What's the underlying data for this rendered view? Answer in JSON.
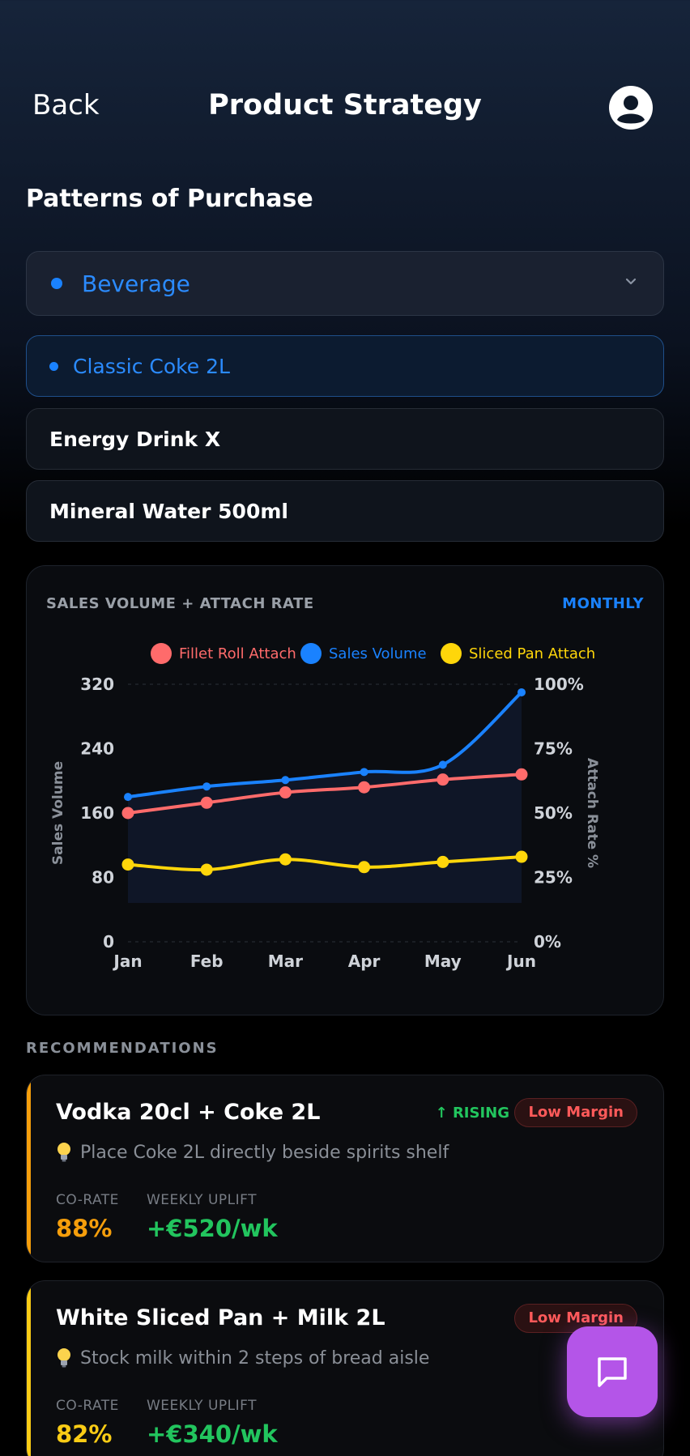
{
  "header": {
    "back_label": "Back",
    "title": "Product Strategy"
  },
  "section_title": "Patterns of Purchase",
  "category_dropdown": {
    "selected": "Beverage"
  },
  "products": [
    {
      "label": "Classic Coke 2L",
      "selected": true
    },
    {
      "label": "Energy Drink X",
      "selected": false
    },
    {
      "label": "Mineral Water 500ml",
      "selected": false
    }
  ],
  "chart": {
    "title": "SALES VOLUME + ATTACH RATE",
    "period": "MONTHLY"
  },
  "chart_data": {
    "type": "line",
    "categories": [
      "Jan",
      "Feb",
      "Mar",
      "Apr",
      "May",
      "Jun"
    ],
    "series": [
      {
        "name": "Fillet Roll Attach",
        "axis": "right",
        "color": "#ff6b6b",
        "values": [
          50,
          54,
          58,
          60,
          63,
          65
        ]
      },
      {
        "name": "Sales Volume",
        "axis": "left",
        "color": "#1a82ff",
        "values": [
          180,
          193,
          201,
          211,
          220,
          310
        ]
      },
      {
        "name": "Sliced Pan Attach",
        "axis": "right",
        "color": "#ffd60a",
        "values": [
          30,
          28,
          32,
          29,
          31,
          33
        ]
      }
    ],
    "left_axis": {
      "label": "Sales Volume",
      "ylim": [
        0,
        320
      ],
      "ticks": [
        "0",
        "80",
        "160",
        "240",
        "320"
      ]
    },
    "right_axis": {
      "label": "Attach Rate %",
      "ylim": [
        0,
        100
      ],
      "ticks": [
        "0%",
        "25%",
        "50%",
        "75%",
        "100%"
      ]
    }
  },
  "recommendations_heading": "RECOMMENDATIONS",
  "recommendations": [
    {
      "title": "Vodka 20cl + Coke 2L",
      "trend": "↑ RISING",
      "badge": "Low Margin",
      "tip": "Place Coke 2L directly beside spirits shelf",
      "co_rate_label": "CO-RATE",
      "co_rate": "88%",
      "uplift_label": "WEEKLY UPLIFT",
      "uplift": "+€520/wk",
      "accent": "#f59e0b"
    },
    {
      "title": "White Sliced Pan + Milk 2L",
      "trend": "",
      "badge": "Low Margin",
      "tip": "Stock milk within 2 steps of bread aisle",
      "co_rate_label": "CO-RATE",
      "co_rate": "82%",
      "uplift_label": "WEEKLY UPLIFT",
      "uplift": "+€340/wk",
      "accent": "#facc15"
    }
  ]
}
